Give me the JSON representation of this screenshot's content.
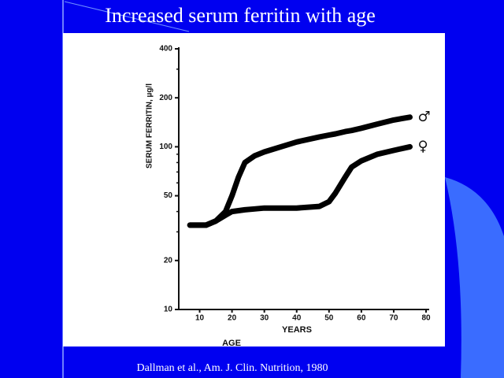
{
  "slide": {
    "title": "Increased serum ferritin with age",
    "citation": "Dallman et al., Am. J. Clin. Nutrition, 1980"
  },
  "chart_data": {
    "type": "line",
    "ylabel": "SERUM FERRITIN, µg/l",
    "xlabel": "YEARS",
    "annotation": "AGE",
    "log_y": true,
    "xlim": [
      5,
      80
    ],
    "xticks": [
      10,
      20,
      30,
      40,
      50,
      60,
      70,
      80
    ],
    "ylim": [
      10,
      400
    ],
    "yticks": [
      10,
      20,
      50,
      100,
      200,
      400
    ],
    "x": [
      7,
      12,
      15,
      18,
      20,
      22,
      24,
      27,
      30,
      40,
      47,
      50,
      52,
      55,
      57,
      60,
      65,
      70,
      75
    ],
    "series": [
      {
        "name": "♂",
        "color": "#000000",
        "values": [
          33,
          33,
          35,
          40,
          50,
          65,
          80,
          88,
          93,
          107,
          115,
          118,
          120,
          124,
          126,
          130,
          138,
          146,
          152
        ]
      },
      {
        "name": "♀",
        "color": "#000000",
        "values": [
          33,
          33,
          35,
          38,
          40,
          40.5,
          41,
          41.5,
          42,
          42,
          43,
          46,
          52,
          65,
          75,
          82,
          90,
          95,
          100
        ]
      }
    ]
  }
}
